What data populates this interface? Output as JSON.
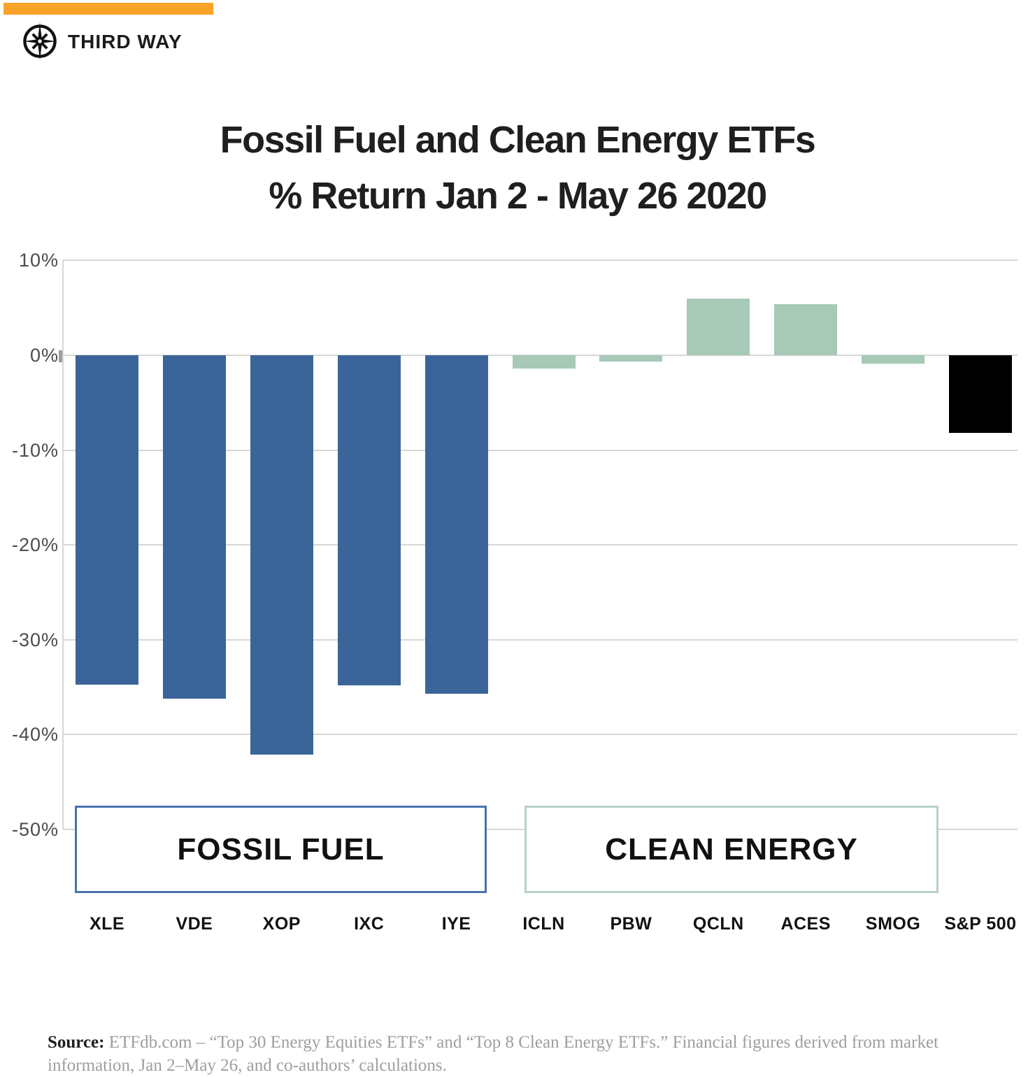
{
  "brand": {
    "name": "THIRD WAY",
    "logo_icon": "compass-star-icon",
    "accent_color": "#F9A229"
  },
  "title": {
    "line1": "Fossil Fuel and Clean Energy ETFs",
    "line2": "% Return Jan 2 - May 26 2020"
  },
  "chart_data": {
    "type": "bar",
    "title": "Fossil Fuel and Clean Energy ETFs % Return Jan 2 - May 26 2020",
    "ylabel": "% Return",
    "ylim": [
      -50,
      10
    ],
    "grid": "horizontal",
    "y_ticks": [
      {
        "label": "10%",
        "value": 10
      },
      {
        "label": "0%",
        "value": 0
      },
      {
        "label": "-10%",
        "value": -10
      },
      {
        "label": "-20%",
        "value": -20
      },
      {
        "label": "-30%",
        "value": -30
      },
      {
        "label": "-40%",
        "value": -40
      },
      {
        "label": "-50%",
        "value": -50
      }
    ],
    "bars": [
      {
        "label": "XLE",
        "value": -34.7,
        "group": "fossil"
      },
      {
        "label": "VDE",
        "value": -36.2,
        "group": "fossil"
      },
      {
        "label": "XOP",
        "value": -42.1,
        "group": "fossil"
      },
      {
        "label": "IXC",
        "value": -34.8,
        "group": "fossil"
      },
      {
        "label": "IYE",
        "value": -35.7,
        "group": "fossil"
      },
      {
        "label": "ICLN",
        "value": -1.4,
        "group": "clean"
      },
      {
        "label": "PBW",
        "value": -0.7,
        "group": "clean"
      },
      {
        "label": "QCLN",
        "value": 6.0,
        "group": "clean"
      },
      {
        "label": "ACES",
        "value": 5.4,
        "group": "clean"
      },
      {
        "label": "SMOG",
        "value": -0.9,
        "group": "clean"
      },
      {
        "label": "S&P 500",
        "value": -8.2,
        "group": "sp500"
      }
    ],
    "colors": {
      "fossil": "#3B6598",
      "clean": "#A7C9B7",
      "sp500": "#000000"
    },
    "group_boxes": [
      {
        "label": "FOSSIL FUEL",
        "border_color": "#4A72AD"
      },
      {
        "label": "CLEAN ENERGY",
        "border_color": "#B8D1C4"
      }
    ]
  },
  "source": {
    "label": "Source:",
    "text": " ETFdb.com – “Top 30 Energy Equities ETFs” and “Top 8 Clean Energy ETFs.” Financial figures derived from market information, Jan 2–May 26, and co-authors’ calculations."
  }
}
